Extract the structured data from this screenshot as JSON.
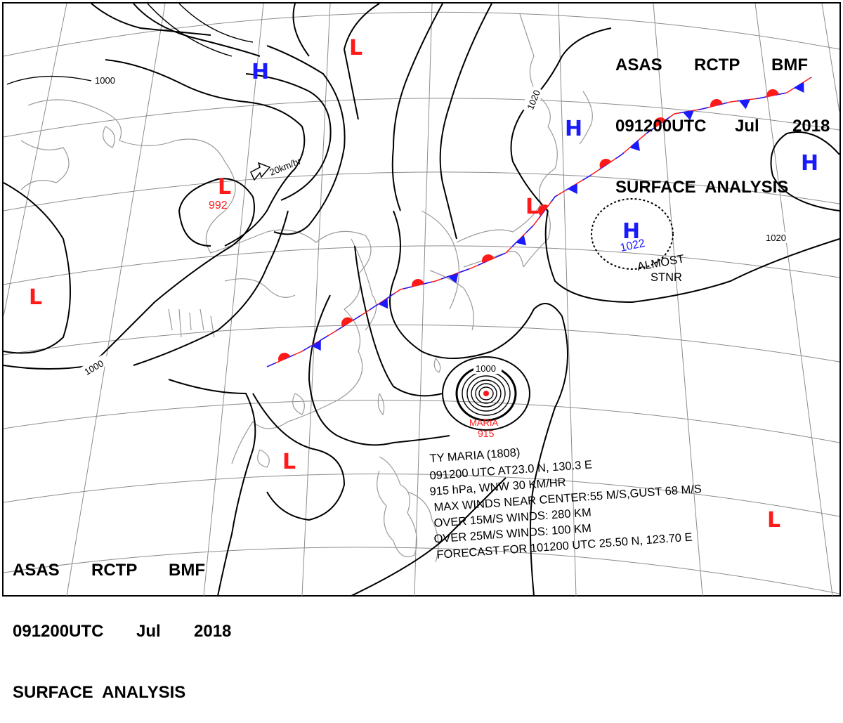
{
  "header_top": {
    "line1": [
      "ASAS",
      "RCTP",
      "BMF"
    ],
    "line2": [
      "091200UTC",
      "Jul",
      "2018"
    ],
    "line3": "SURFACE  ANALYSIS"
  },
  "header_bottom": {
    "line1": [
      "ASAS",
      "RCTP",
      "BMF"
    ],
    "line2": [
      "091200UTC",
      "Jul",
      "2018"
    ],
    "line3": "SURFACE  ANALYSIS"
  },
  "colors": {
    "high": "#1a1aff",
    "low": "#ff1a1a",
    "isobar": "#000000",
    "coast": "#9a9a9a",
    "grid": "#8c8c8c"
  },
  "pressure_systems": [
    {
      "id": "h-north",
      "type": "H",
      "pressure": ""
    },
    {
      "id": "l-north",
      "type": "L",
      "pressure": ""
    },
    {
      "id": "l-mongolia",
      "type": "L",
      "pressure": "992"
    },
    {
      "id": "h-okhotsk",
      "type": "H",
      "pressure": ""
    },
    {
      "id": "h-east",
      "type": "H",
      "pressure": ""
    },
    {
      "id": "h-pacific",
      "type": "H",
      "pressure": "1022"
    },
    {
      "id": "l-west",
      "type": "L",
      "pressure": ""
    },
    {
      "id": "l-south-china",
      "type": "L",
      "pressure": ""
    },
    {
      "id": "l-japan",
      "type": "L",
      "pressure": ""
    },
    {
      "id": "l-southeast",
      "type": "L",
      "pressure": ""
    }
  ],
  "isobar_labels": [
    "1000",
    "1020",
    "1020",
    "1000",
    "1000"
  ],
  "motion_label": "20km/hr",
  "stationary_note": [
    "ALMOST",
    "STNR"
  ],
  "typhoon": {
    "name": "MARIA",
    "pressure": "915",
    "info": [
      "TY  MARIA  (1808)",
      "091200 UTC  AT23.0 N, 130.3 E",
      "915 hPa, WNW  30 KM/HR",
      "MAX WINDS NEAR CENTER:55 M/S,GUST 68 M/S",
      "OVER 15M/S WINDS: 280 KM",
      "OVER 25M/S WINDS: 100 KM",
      "FORECAST FOR 101200 UTC 25.50 N, 123.70 E"
    ]
  }
}
